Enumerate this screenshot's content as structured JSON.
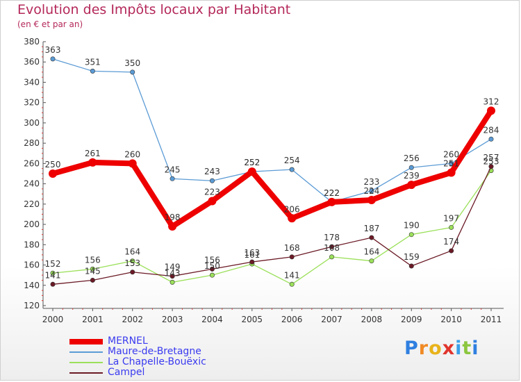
{
  "title": "Evolution des Impôts locaux par Habitant",
  "subtitle": "(en € et par an)",
  "brand": {
    "letters": [
      "P",
      "r",
      "o",
      "x",
      "i",
      "t",
      "i"
    ],
    "colors": [
      "#2f7fe0",
      "#f08a24",
      "#e8b31b",
      "#e0342c",
      "#3aa0e8",
      "#8cc63f",
      "#2f7fe0"
    ]
  },
  "chart_data": {
    "type": "line",
    "title": "Evolution des Impôts locaux par Habitant",
    "subtitle": "(en € et par an)",
    "xlabel": "",
    "ylabel": "",
    "categories": [
      "2000",
      "2001",
      "2002",
      "2003",
      "2004",
      "2005",
      "2006",
      "2007",
      "2008",
      "2009",
      "2010",
      "2011"
    ],
    "ylim": [
      120,
      380
    ],
    "yticks": [
      120,
      140,
      160,
      180,
      200,
      220,
      240,
      260,
      280,
      300,
      320,
      340,
      360,
      380
    ],
    "legend_position": "bottom-left",
    "grid": false,
    "series": [
      {
        "name": "Maure-de-Bretagne",
        "color": "#5b9bd5",
        "values": [
          363,
          351,
          350,
          245,
          243,
          252,
          254,
          222,
          233,
          256,
          260,
          284
        ]
      },
      {
        "name": "La Chapelle-Bouëxic",
        "color": "#9be05a",
        "values": [
          152,
          156,
          164,
          143,
          150,
          161,
          141,
          168,
          164,
          190,
          197,
          253
        ]
      },
      {
        "name": "Campel",
        "color": "#6b1a26",
        "values": [
          141,
          145,
          153,
          149,
          156,
          163,
          168,
          178,
          187,
          159,
          174,
          257
        ]
      },
      {
        "name": "MERNEL",
        "color": "#ee0000",
        "values": [
          250,
          261,
          260,
          198,
          223,
          252,
          206,
          222,
          224,
          239,
          251,
          312
        ]
      }
    ],
    "legend_order": [
      "MERNEL",
      "Maure-de-Bretagne",
      "La Chapelle-Bouëxic",
      "Campel"
    ]
  }
}
